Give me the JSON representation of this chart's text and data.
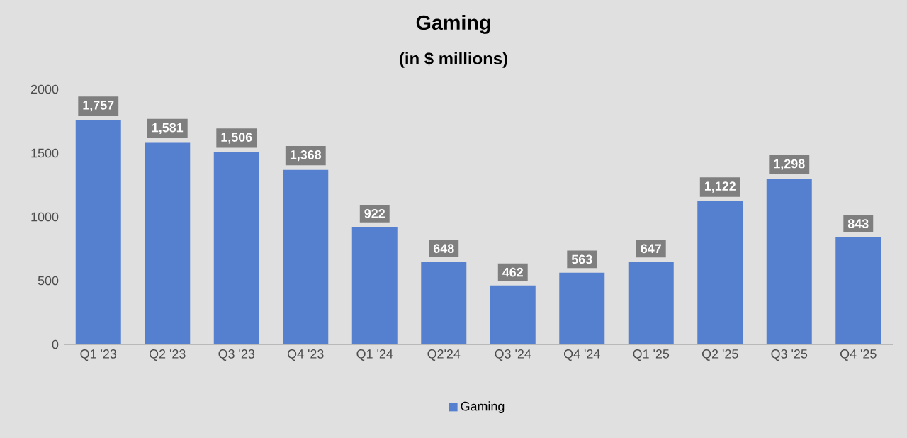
{
  "chart_data": {
    "type": "bar",
    "title": "Gaming",
    "subtitle": "(in $ millions)",
    "categories": [
      "Q1 '23",
      "Q2 '23",
      "Q3 '23",
      "Q4 '23",
      "Q1 '24",
      "Q2'24",
      "Q3 '24",
      "Q4 '24",
      "Q1 '25",
      "Q2 '25",
      "Q3 '25",
      "Q4 '25"
    ],
    "series": [
      {
        "name": "Gaming",
        "color": "#5580cf",
        "values": [
          1757,
          1581,
          1506,
          1368,
          922,
          648,
          462,
          563,
          647,
          1122,
          1298,
          843
        ]
      }
    ],
    "value_labels": [
      "1,757",
      "1,581",
      "1,506",
      "1,368",
      "922",
      "648",
      "462",
      "563",
      "647",
      "1,122",
      "1,298",
      "843"
    ],
    "ylim": [
      0,
      2000
    ],
    "yticks": [
      0,
      500,
      1000,
      1500,
      2000
    ],
    "grid": false,
    "legend": "bottom"
  }
}
